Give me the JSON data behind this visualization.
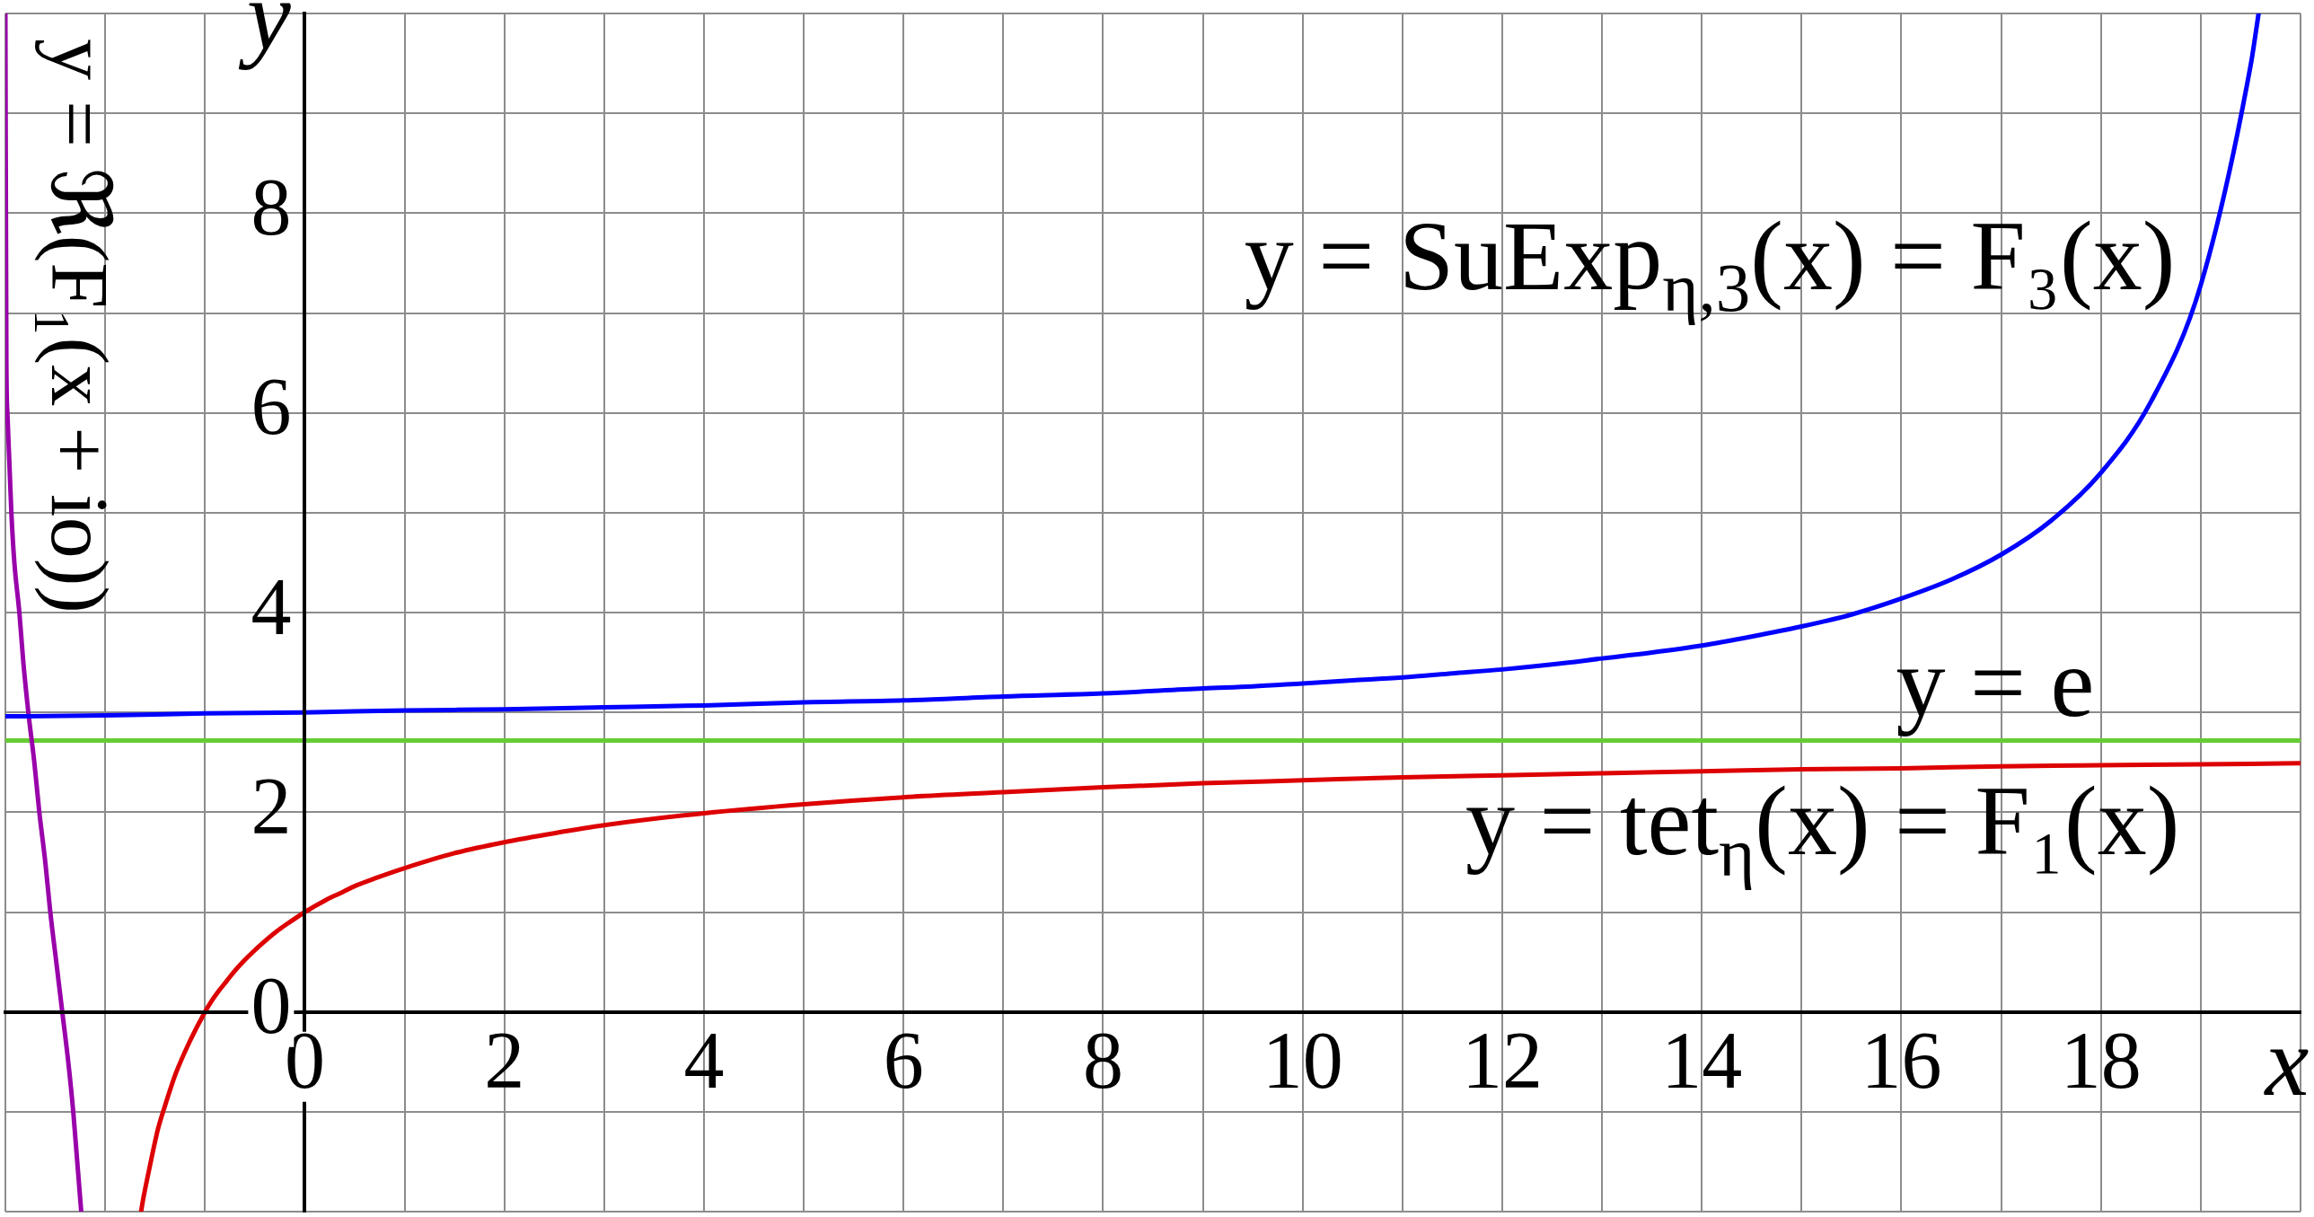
{
  "chart_data": {
    "type": "line",
    "xlabel": "x",
    "ylabel": "y",
    "xlim": [
      -3,
      20
    ],
    "ylim": [
      -2,
      10
    ],
    "xticks": [
      {
        "value": -3,
        "label": null
      },
      {
        "value": -2,
        "label": null
      },
      {
        "value": -1,
        "label": null
      },
      0,
      {
        "value": 1,
        "label": null
      },
      2,
      {
        "value": 3,
        "label": null
      },
      4,
      {
        "value": 5,
        "label": null
      },
      6,
      {
        "value": 7,
        "label": null
      },
      8,
      {
        "value": 9,
        "label": null
      },
      10,
      {
        "value": 11,
        "label": null
      },
      12,
      {
        "value": 13,
        "label": null
      },
      14,
      {
        "value": 15,
        "label": null
      },
      16,
      {
        "value": 17,
        "label": null
      },
      18,
      {
        "value": 19,
        "label": null
      },
      {
        "value": 20,
        "label": null
      }
    ],
    "yticks": [
      {
        "value": -2,
        "label": null
      },
      {
        "value": -1,
        "label": null
      },
      0,
      {
        "value": 1,
        "label": null
      },
      2,
      {
        "value": 3,
        "label": null
      },
      4,
      {
        "value": 5,
        "label": null
      },
      6,
      {
        "value": 7,
        "label": null
      },
      8,
      {
        "value": 9,
        "label": null
      },
      {
        "value": 10,
        "label": null
      }
    ],
    "grid": true,
    "series": [
      {
        "name": "y = tet$_{η}$(x) = F₁(x)",
        "color": "#dd0000",
        "x": [
          -1.64,
          -1.62,
          -1.57,
          -1.52,
          -1.47,
          -1.41,
          -1.29,
          -1.15,
          -1,
          -0.94,
          -0.87,
          -0.79,
          -0.71,
          -0.62,
          -0.52,
          -0.41,
          -0.29,
          -0.15,
          0,
          0.21,
          0.38,
          0.5,
          0.71,
          1,
          1.5,
          2,
          2.5,
          3,
          4,
          5,
          6,
          7,
          8,
          9,
          10,
          11,
          12,
          13,
          14,
          15,
          16,
          17,
          18,
          19,
          20
        ],
        "values": [
          -2,
          -1.88,
          -1.63,
          -1.39,
          -1.17,
          -0.97,
          -0.61,
          -0.29,
          0,
          0.1,
          0.2,
          0.3,
          0.4,
          0.5,
          0.6,
          0.7,
          0.8,
          0.9,
          1,
          1.12,
          1.2,
          1.26,
          1.34,
          1.44,
          1.59,
          1.7,
          1.79,
          1.87,
          1.99,
          2.08,
          2.15,
          2.2,
          2.25,
          2.29,
          2.32,
          2.35,
          2.37,
          2.39,
          2.41,
          2.43,
          2.44,
          2.46,
          2.47,
          2.48,
          2.49
        ]
      },
      {
        "name": "y = SuExp$_{η,3}$(x) = F₃(x)",
        "color": "#0000ff",
        "x": [
          -3,
          -2,
          -1,
          0,
          1,
          2,
          3,
          4,
          5,
          6,
          7,
          8,
          9,
          9.5,
          10,
          10.5,
          11,
          11.5,
          12,
          12.5,
          13,
          13.5,
          14,
          14.5,
          15,
          15.5,
          16,
          16.5,
          17,
          17.5,
          18,
          18.5,
          19,
          19.5,
          19.58
        ],
        "values": [
          2.96,
          2.97,
          2.99,
          3,
          3.02,
          3.03,
          3.05,
          3.07,
          3.1,
          3.12,
          3.16,
          3.19,
          3.24,
          3.26,
          3.29,
          3.32,
          3.35,
          3.39,
          3.43,
          3.48,
          3.54,
          3.6,
          3.67,
          3.76,
          3.86,
          3.98,
          4.14,
          4.33,
          4.58,
          4.92,
          5.4,
          6.11,
          7.28,
          9.48,
          10
        ]
      },
      {
        "name": "y = ℜ(F₁(x + io))",
        "color": "#9900aa",
        "x": [
          -3,
          -2.99,
          -2.98,
          -2.96,
          -2.94,
          -2.91,
          -2.86,
          -2.82,
          -2.77,
          -2.71,
          -2.66,
          -2.6,
          -2.55,
          -2.49,
          -2.43,
          -2.37,
          -2.32,
          -2.28,
          -2.24
        ],
        "values": [
          10,
          6.5,
          6,
          5.5,
          5,
          4.5,
          4,
          3.5,
          3,
          2.5,
          2,
          1.5,
          1,
          0.5,
          0,
          -0.5,
          -1,
          -1.5,
          -2
        ]
      }
    ],
    "ref_lines": [
      {
        "axis": "y",
        "value": 2.718,
        "label": "y = e",
        "color": "#66cc33"
      }
    ]
  }
}
